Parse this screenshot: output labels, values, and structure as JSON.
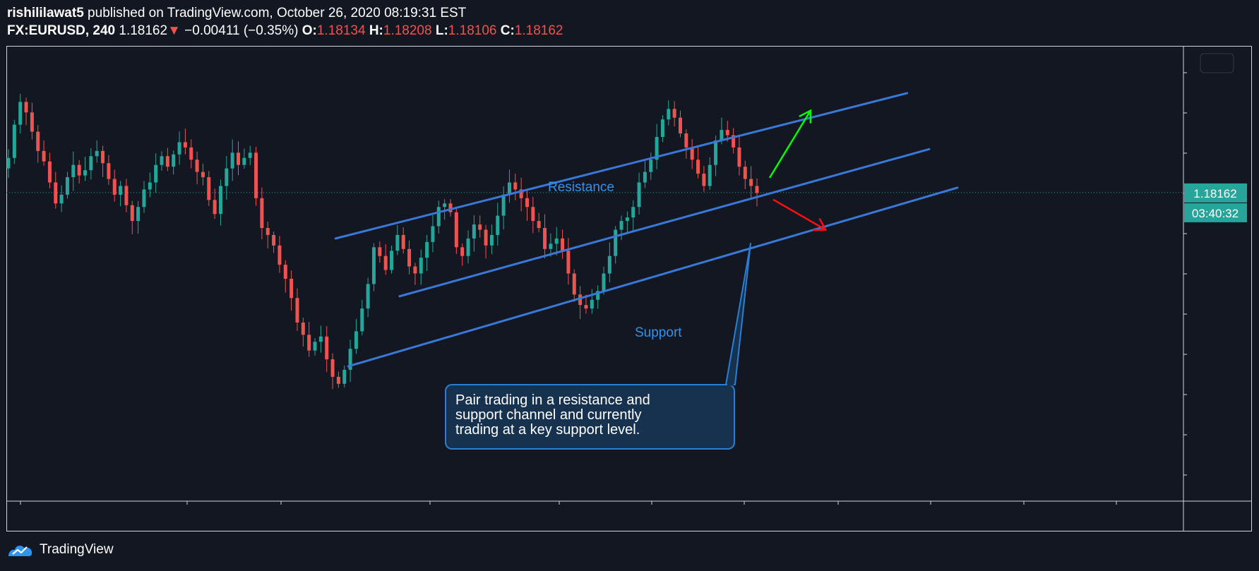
{
  "header": {
    "author": "rishililawat5",
    "published_text": " published on TradingView.com, October 26, 2020 08:19:31 EST",
    "symbol": "FX:EURUSD, 240",
    "last_price": "1.18162",
    "change_arrow": "▼",
    "change": "−0.00411 (−0.35%)",
    "open_label": "O:",
    "open": "1.18134",
    "high_label": "H:",
    "high": "1.18208",
    "low_label": "L:",
    "low": "1.18106",
    "close_label": "C:",
    "close": "1.18162"
  },
  "price_badge": "1.18162",
  "countdown_badge": "03:40:32",
  "annotations": {
    "resistance": "Resistance",
    "support": "Support",
    "callout_lines": [
      "Pair trading in a resistance and",
      "support channel and currently",
      "trading at a key support level."
    ]
  },
  "footer": {
    "brand": "TradingView",
    "logo_icon": "tradingview-logo-icon"
  },
  "colors": {
    "background": "#131722",
    "up": "#26a69a",
    "down": "#ef5350",
    "channel": "#3a78d8",
    "label": "#2f93f0",
    "badge": "#26a69a",
    "arrow_up": "#00ff00",
    "arrow_down": "#ff1010",
    "callout_fill": "#16324f",
    "callout_border": "#2a7fd3"
  },
  "chart_data": {
    "type": "candlestick",
    "series_hint": "EURUSD 4H candles (approx.)",
    "ylim": [
      1.164,
      1.19
    ],
    "current_price": 1.18162,
    "close_path": [
      1.1836,
      1.1855,
      1.1868,
      1.1862,
      1.1851,
      1.184,
      1.1834,
      1.1822,
      1.181,
      1.1815,
      1.1825,
      1.1832,
      1.1826,
      1.1829,
      1.1837,
      1.184,
      1.1833,
      1.1824,
      1.1815,
      1.182,
      1.1809,
      1.18,
      1.1808,
      1.1818,
      1.1822,
      1.1832,
      1.1837,
      1.1831,
      1.1838,
      1.1845,
      1.1842,
      1.1835,
      1.1828,
      1.1825,
      1.1812,
      1.1804,
      1.182,
      1.183,
      1.1839,
      1.1832,
      1.1836,
      1.1839,
      1.1813,
      1.1796,
      1.1792,
      1.1786,
      1.1775,
      1.1767,
      1.1756,
      1.1742,
      1.1735,
      1.1726,
      1.1731,
      1.1734,
      1.1721,
      1.1711,
      1.1707,
      1.1715,
      1.1727,
      1.1737,
      1.175,
      1.1764,
      1.1785,
      1.178,
      1.1772,
      1.1783,
      1.1792,
      1.1784,
      1.1774,
      1.177,
      1.1779,
      1.1788,
      1.1797,
      1.1808,
      1.181,
      1.1805,
      1.1785,
      1.178,
      1.179,
      1.1798,
      1.1795,
      1.1786,
      1.1792,
      1.1803,
      1.1815,
      1.1822,
      1.1818,
      1.1813,
      1.1808,
      1.18,
      1.1796,
      1.1784,
      1.1787,
      1.179,
      1.1783,
      1.177,
      1.1758,
      1.1752,
      1.175,
      1.1755,
      1.176,
      1.177,
      1.178,
      1.1795,
      1.18,
      1.1802,
      1.1808,
      1.1822,
      1.1828,
      1.1835,
      1.1848,
      1.1858,
      1.1864,
      1.1859,
      1.185,
      1.1842,
      1.1835,
      1.1827,
      1.182,
      1.1832,
      1.1846,
      1.1852,
      1.1849,
      1.1842,
      1.1831,
      1.1824,
      1.182,
      1.1816
    ],
    "trendlines": [
      {
        "name": "resistance",
        "p1": [
          0.2643,
          1.179
        ],
        "p2": [
          0.7232,
          1.1873
        ]
      },
      {
        "name": "middle",
        "p1": [
          0.3157,
          1.1757
        ],
        "p2": [
          0.7409,
          1.1841
        ]
      },
      {
        "name": "support",
        "p1": [
          0.2745,
          1.1717
        ],
        "p2": [
          0.7635,
          1.1819
        ]
      }
    ],
    "arrows": [
      {
        "name": "bullish",
        "from": [
          0.6131,
          1.1825
        ],
        "to": [
          0.6456,
          1.1863
        ]
      },
      {
        "name": "bearish",
        "from": [
          0.6162,
          1.1812
        ],
        "to": [
          0.6577,
          1.1795
        ]
      }
    ],
    "grid": false,
    "legend": "none"
  }
}
